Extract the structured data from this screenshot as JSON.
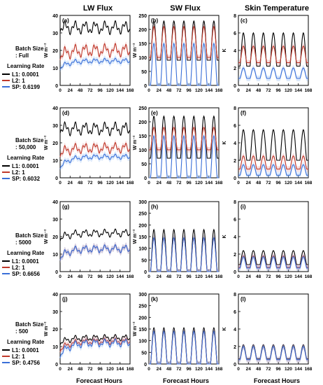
{
  "figure": {
    "column_titles": [
      "LW Flux",
      "SW Flux",
      "Skin Temperature"
    ],
    "xlabel": "Forecast Hours",
    "row_legends": [
      {
        "batch_line1": "Batch Size",
        "batch_line2": ": Full",
        "lr_title": "Learning Rate",
        "entries": [
          {
            "label": "L1: 0.0001",
            "color": "#000000"
          },
          {
            "label": "L2: 1",
            "color": "#c0392b"
          },
          {
            "label": "SP: 0.6199",
            "color": "#3a6fd8"
          }
        ]
      },
      {
        "batch_line1": "Batch Size",
        "batch_line2": ": 50,000",
        "lr_title": "Learning Rate",
        "entries": [
          {
            "label": "L1: 0.0001",
            "color": "#000000"
          },
          {
            "label": "L2: 1",
            "color": "#c0392b"
          },
          {
            "label": "SP: 0.6032",
            "color": "#3a6fd8"
          }
        ]
      },
      {
        "batch_line1": "Batch Size",
        "batch_line2": ": 5000",
        "lr_title": "Learning Rate",
        "entries": [
          {
            "label": "L1: 0.0001",
            "color": "#000000"
          },
          {
            "label": "L2: 1",
            "color": "#c0392b"
          },
          {
            "label": "SP: 0.6656",
            "color": "#3a6fd8"
          }
        ]
      },
      {
        "batch_line1": "Batch Size",
        "batch_line2": ": 500",
        "lr_title": "Learning Rate",
        "entries": [
          {
            "label": "L1: 0.0001",
            "color": "#000000"
          },
          {
            "label": "L2: 1",
            "color": "#c0392b"
          },
          {
            "label": "SP: 0.4756",
            "color": "#3a6fd8"
          }
        ]
      }
    ]
  },
  "chart_data": [
    {
      "type": "line",
      "panel": "(a)",
      "title": "LW Flux",
      "ylabel": "W m⁻²",
      "xlabel": "",
      "xlim": [
        0,
        168
      ],
      "ylim": [
        0,
        40
      ],
      "xticks": [
        0,
        24,
        48,
        72,
        96,
        120,
        144,
        168
      ],
      "yticks": [
        0,
        10,
        20,
        30,
        40
      ],
      "x": [
        0,
        168
      ],
      "series": [
        {
          "name": "L1: 0.0001",
          "mean": 33,
          "amp": 2.5,
          "rise": 0
        },
        {
          "name": "L2: 1",
          "mean": 20,
          "amp": 2.5,
          "rise": 3
        },
        {
          "name": "SP: 0.6199",
          "mean": 14,
          "amp": 1,
          "rise": 4
        }
      ]
    },
    {
      "type": "line",
      "panel": "(b)",
      "title": "SW Flux",
      "ylabel": "W m⁻²",
      "xlabel": "",
      "xlim": [
        0,
        168
      ],
      "ylim": [
        0,
        250
      ],
      "xticks": [
        0,
        24,
        48,
        72,
        96,
        120,
        144,
        168
      ],
      "yticks": [
        0,
        50,
        100,
        150,
        200,
        250
      ],
      "x": [
        0,
        168
      ],
      "series": [
        {
          "name": "L1: 0.0001",
          "base": 90,
          "peak": 230
        },
        {
          "name": "L2: 1",
          "base": 100,
          "peak": 210
        },
        {
          "name": "SP: 0.6199",
          "base": 0,
          "peak": 150
        }
      ]
    },
    {
      "type": "line",
      "panel": "(c)",
      "title": "Skin Temperature",
      "ylabel": "K",
      "xlabel": "",
      "xlim": [
        0,
        168
      ],
      "ylim": [
        0,
        8
      ],
      "xticks": [
        0,
        24,
        48,
        72,
        96,
        120,
        144,
        168
      ],
      "yticks": [
        0,
        2,
        4,
        6,
        8
      ],
      "x": [
        0,
        168
      ],
      "series": [
        {
          "name": "L1: 0.0001",
          "base": 2.2,
          "peak": 6
        },
        {
          "name": "L2: 1",
          "base": 2.6,
          "peak": 4.5
        },
        {
          "name": "SP: 0.6199",
          "base": 0.8,
          "peak": 2
        }
      ]
    },
    {
      "type": "line",
      "panel": "(d)",
      "title": "",
      "ylabel": "W m⁻²",
      "xlabel": "",
      "xlim": [
        0,
        168
      ],
      "ylim": [
        0,
        40
      ],
      "xticks": [
        0,
        24,
        48,
        72,
        96,
        120,
        144,
        168
      ],
      "yticks": [
        0,
        10,
        20,
        30,
        40
      ],
      "x": [
        0,
        168
      ],
      "series": [
        {
          "name": "L1: 0.0001",
          "mean": 28,
          "amp": 2.5,
          "rise": 0
        },
        {
          "name": "L2: 1",
          "mean": 17,
          "amp": 2,
          "rise": 3
        },
        {
          "name": "SP: 0.6032",
          "mean": 12,
          "amp": 1,
          "rise": 6
        }
      ]
    },
    {
      "type": "line",
      "panel": "(e)",
      "title": "",
      "ylabel": "W m⁻²",
      "xlabel": "",
      "xlim": [
        0,
        168
      ],
      "ylim": [
        0,
        250
      ],
      "xticks": [
        0,
        24,
        48,
        72,
        96,
        120,
        144,
        168
      ],
      "yticks": [
        0,
        50,
        100,
        150,
        200,
        250
      ],
      "x": [
        0,
        168
      ],
      "series": [
        {
          "name": "L1: 0.0001",
          "base": 70,
          "peak": 220
        },
        {
          "name": "L2: 1",
          "base": 100,
          "peak": 180
        },
        {
          "name": "SP: 0.6032",
          "base": 0,
          "peak": 150
        }
      ]
    },
    {
      "type": "line",
      "panel": "(f)",
      "title": "",
      "ylabel": "K",
      "xlabel": "",
      "xlim": [
        0,
        168
      ],
      "ylim": [
        0,
        8
      ],
      "xticks": [
        0,
        24,
        48,
        72,
        96,
        120,
        144,
        168
      ],
      "yticks": [
        0,
        2,
        4,
        6,
        8
      ],
      "x": [
        0,
        168
      ],
      "series": [
        {
          "name": "L1: 0.0001",
          "base": 2,
          "peak": 5.5
        },
        {
          "name": "L2: 1",
          "base": 1,
          "peak": 2.5
        },
        {
          "name": "SP: 0.6032",
          "base": 0.3,
          "peak": 1.5
        }
      ]
    },
    {
      "type": "line",
      "panel": "(g)",
      "title": "",
      "ylabel": "W m⁻²",
      "xlabel": "",
      "xlim": [
        0,
        168
      ],
      "ylim": [
        0,
        40
      ],
      "xticks": [
        0,
        24,
        48,
        72,
        96,
        120,
        144,
        168
      ],
      "yticks": [
        0,
        10,
        20,
        30,
        40
      ],
      "x": [
        0,
        168
      ],
      "series": [
        {
          "name": "L1: 0.0001",
          "mean": 22,
          "amp": 1.5,
          "rise": 3
        },
        {
          "name": "L2: 1",
          "mean": 13,
          "amp": 1.5,
          "rise": 5
        },
        {
          "name": "SP: 0.6656",
          "mean": 13,
          "amp": 1.5,
          "rise": 5
        }
      ]
    },
    {
      "type": "line",
      "panel": "(h)",
      "title": "",
      "ylabel": "W m⁻²",
      "xlabel": "",
      "xlim": [
        0,
        168
      ],
      "ylim": [
        0,
        300
      ],
      "xticks": [
        0,
        24,
        48,
        72,
        96,
        120,
        144,
        168
      ],
      "yticks": [
        0,
        50,
        100,
        150,
        200,
        250,
        300
      ],
      "x": [
        0,
        168
      ],
      "series": [
        {
          "name": "L1: 0.0001",
          "base": 0,
          "peak": 180
        },
        {
          "name": "L2: 1",
          "base": 0,
          "peak": 145
        },
        {
          "name": "SP: 0.6656",
          "base": 0,
          "peak": 145
        }
      ]
    },
    {
      "type": "line",
      "panel": "(i)",
      "title": "",
      "ylabel": "K",
      "xlabel": "",
      "xlim": [
        0,
        168
      ],
      "ylim": [
        0,
        8
      ],
      "xticks": [
        0,
        24,
        48,
        72,
        96,
        120,
        144,
        168
      ],
      "yticks": [
        0,
        2,
        4,
        6,
        8
      ],
      "x": [
        0,
        168
      ],
      "series": [
        {
          "name": "L1: 0.0001",
          "base": 0.8,
          "peak": 2.4
        },
        {
          "name": "L2: 1",
          "base": 0.5,
          "peak": 1.8
        },
        {
          "name": "SP: 0.6656",
          "base": 0.4,
          "peak": 1.7
        }
      ]
    },
    {
      "type": "line",
      "panel": "(j)",
      "title": "",
      "ylabel": "W m⁻²",
      "xlabel": "Forecast Hours",
      "xlim": [
        0,
        168
      ],
      "ylim": [
        0,
        40
      ],
      "xticks": [
        0,
        24,
        48,
        72,
        96,
        120,
        144,
        168
      ],
      "yticks": [
        0,
        10,
        20,
        30,
        40
      ],
      "x": [
        0,
        168
      ],
      "series": [
        {
          "name": "L1: 0.0001",
          "mean": 15,
          "amp": 1.2,
          "rise": 3
        },
        {
          "name": "L2: 1",
          "mean": 13,
          "amp": 1.2,
          "rise": 5
        },
        {
          "name": "SP: 0.4756",
          "mean": 12,
          "amp": 1.5,
          "rise": 7
        }
      ]
    },
    {
      "type": "line",
      "panel": "(k)",
      "title": "",
      "ylabel": "W m⁻²",
      "xlabel": "Forecast Hours",
      "xlim": [
        0,
        168
      ],
      "ylim": [
        0,
        300
      ],
      "xticks": [
        0,
        24,
        48,
        72,
        96,
        120,
        144,
        168
      ],
      "yticks": [
        0,
        50,
        100,
        150,
        200,
        250,
        300
      ],
      "x": [
        0,
        168
      ],
      "series": [
        {
          "name": "L1: 0.0001",
          "base": 0,
          "peak": 155
        },
        {
          "name": "L2: 1",
          "base": 0,
          "peak": 140
        },
        {
          "name": "SP: 0.4756",
          "base": 0,
          "peak": 140
        }
      ]
    },
    {
      "type": "line",
      "panel": "(l)",
      "title": "",
      "ylabel": "K",
      "xlabel": "Forecast Hours",
      "xlim": [
        0,
        168
      ],
      "ylim": [
        0,
        8
      ],
      "xticks": [
        0,
        24,
        48,
        72,
        96,
        120,
        144,
        168
      ],
      "yticks": [
        0,
        2,
        4,
        6,
        8
      ],
      "x": [
        0,
        168
      ],
      "series": [
        {
          "name": "L1: 0.0001",
          "base": 0.6,
          "peak": 2.2
        },
        {
          "name": "L2: 1",
          "base": 0.5,
          "peak": 2
        },
        {
          "name": "SP: 0.4756",
          "base": 0.5,
          "peak": 2
        }
      ]
    }
  ]
}
